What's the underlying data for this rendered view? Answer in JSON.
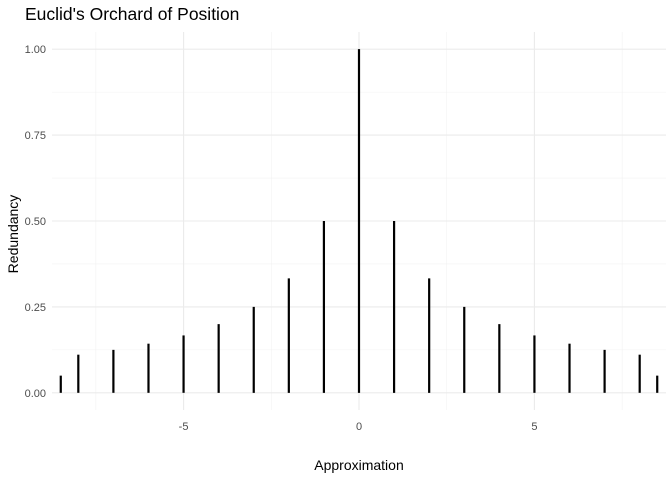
{
  "chart_data": {
    "type": "bar",
    "title": "Euclid's Orchard of Position",
    "xlabel": "Approximation",
    "ylabel": "Redundancy",
    "xlim": [
      -8.75,
      8.75
    ],
    "ylim": [
      -0.05,
      1.05
    ],
    "xticks": [
      -5,
      0,
      5
    ],
    "xtick_labels": [
      "-5",
      "0",
      "5"
    ],
    "yticks": [
      0,
      0.25,
      0.5,
      0.75,
      1
    ],
    "ytick_labels": [
      "0.00",
      "0.25",
      "0.50",
      "0.75",
      "1.00"
    ],
    "grid": true,
    "bar_color": "#000000",
    "points": [
      {
        "x": -8.5,
        "y": 0.05
      },
      {
        "x": -8,
        "y": 0.111
      },
      {
        "x": -7,
        "y": 0.125
      },
      {
        "x": -6,
        "y": 0.143
      },
      {
        "x": -5,
        "y": 0.167
      },
      {
        "x": -4,
        "y": 0.2
      },
      {
        "x": -3,
        "y": 0.25
      },
      {
        "x": -2,
        "y": 0.333
      },
      {
        "x": -1,
        "y": 0.5
      },
      {
        "x": 0,
        "y": 1.0
      },
      {
        "x": 1,
        "y": 0.5
      },
      {
        "x": 2,
        "y": 0.333
      },
      {
        "x": 3,
        "y": 0.25
      },
      {
        "x": 4,
        "y": 0.2
      },
      {
        "x": 5,
        "y": 0.167
      },
      {
        "x": 6,
        "y": 0.143
      },
      {
        "x": 7,
        "y": 0.125
      },
      {
        "x": 8,
        "y": 0.111
      },
      {
        "x": 8.5,
        "y": 0.05
      }
    ]
  }
}
